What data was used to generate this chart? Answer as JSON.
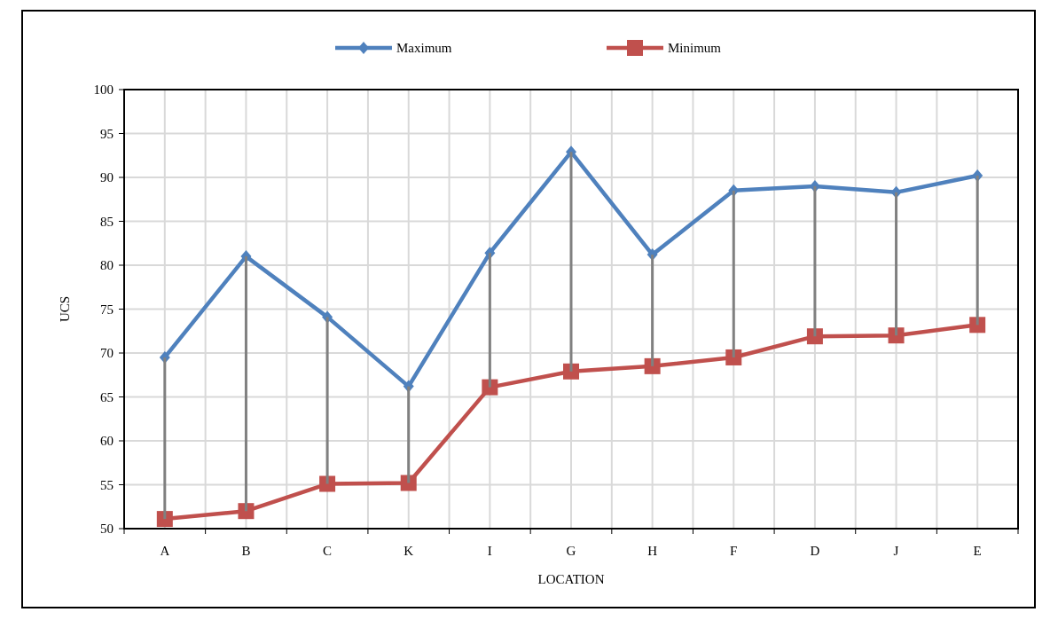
{
  "chart_data": {
    "type": "line",
    "xlabel": "LOCATION",
    "ylabel": "UCS",
    "categories": [
      "A",
      "B",
      "C",
      "K",
      "I",
      "G",
      "H",
      "F",
      "D",
      "J",
      "E"
    ],
    "series": [
      {
        "name": "Maximum",
        "color": "#4f81bd",
        "marker": "diamond",
        "values": [
          69.5,
          81.0,
          74.1,
          66.2,
          81.4,
          92.9,
          81.2,
          88.5,
          89.0,
          88.3,
          90.2
        ]
      },
      {
        "name": "Minimum",
        "color": "#c0504d",
        "marker": "square",
        "values": [
          51.1,
          52.0,
          55.1,
          55.2,
          66.1,
          67.9,
          68.5,
          69.5,
          71.9,
          72.0,
          73.2
        ],
        "errors": [
          [
            51.1,
            69.5
          ],
          [
            52.0,
            81.0
          ],
          [
            55.1,
            74.1
          ],
          [
            55.2,
            66.2
          ],
          [
            66.1,
            81.4
          ],
          [
            67.9,
            92.9
          ],
          [
            68.5,
            81.2
          ],
          [
            69.5,
            88.5
          ],
          [
            71.9,
            89.0
          ],
          [
            72.0,
            88.3
          ],
          [
            73.2,
            90.2
          ]
        ]
      }
    ],
    "ylim": [
      50,
      100
    ],
    "yticks": [
      50,
      55,
      60,
      65,
      70,
      75,
      80,
      85,
      90,
      95,
      100
    ],
    "grid": true,
    "legend": "top"
  }
}
